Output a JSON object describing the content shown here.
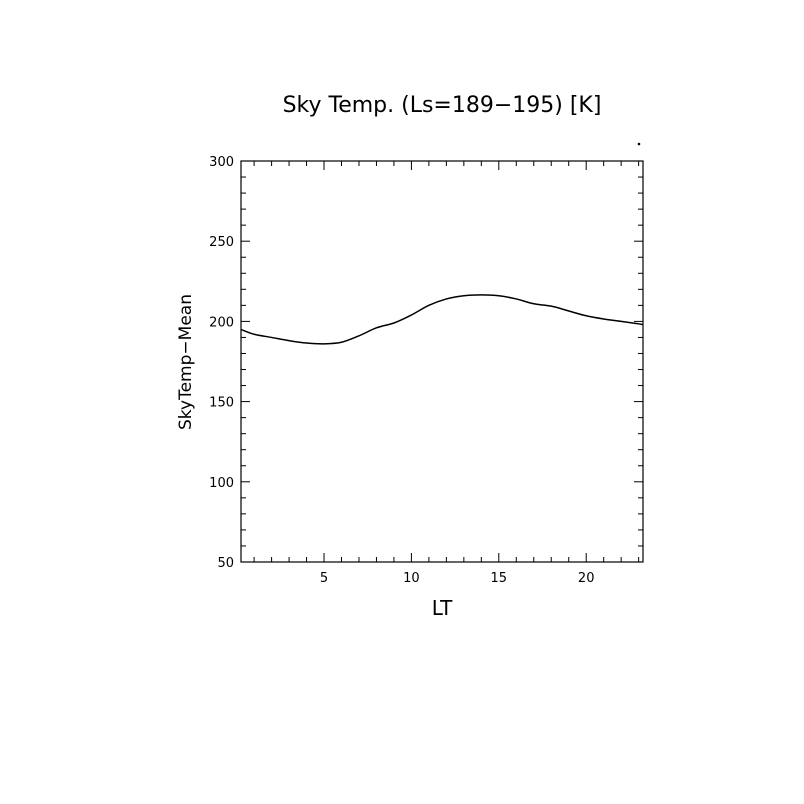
{
  "chart_data": {
    "type": "line",
    "title": "Sky Temp. (Ls=189−195) [K]",
    "xlabel": "LT",
    "ylabel": "SkyTemp−Mean",
    "xlim": [
      0.25,
      23.25
    ],
    "ylim": [
      50,
      300
    ],
    "xticks": [
      5,
      10,
      15,
      20
    ],
    "xtick_labels": [
      "5",
      "10",
      "15",
      "20"
    ],
    "yticks": [
      50,
      100,
      150,
      200,
      250,
      300
    ],
    "ytick_labels": [
      "50",
      "100",
      "150",
      "200",
      "250",
      "300"
    ],
    "grid": false,
    "series": [
      {
        "x": [
          0.25,
          1,
          2,
          3,
          4,
          5,
          6,
          7,
          8,
          9,
          10,
          11,
          12,
          13,
          14,
          15,
          16,
          17,
          18,
          19,
          20,
          21,
          22,
          23,
          23.25
        ],
        "y": [
          195,
          192,
          190,
          188,
          186.5,
          186,
          187,
          191,
          196,
          199,
          204,
          210,
          214,
          216,
          216.5,
          216,
          214,
          211,
          209.5,
          206.5,
          203.5,
          201.5,
          200,
          198.5,
          198
        ]
      }
    ]
  }
}
